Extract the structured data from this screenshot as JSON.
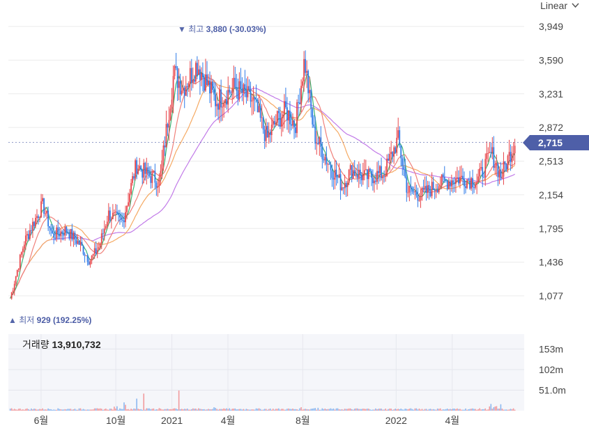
{
  "controls": {
    "scale_label": "Linear"
  },
  "current_price": {
    "label": "2,715",
    "value": 2715
  },
  "extremes": {
    "high": {
      "prefix": "최고",
      "value_label": "3,880",
      "change": "(-30.03%)"
    },
    "low": {
      "prefix": "최저",
      "value_label": "929",
      "change": "(192.25%)"
    }
  },
  "volume": {
    "label": "거래량",
    "value": "13,910,732"
  },
  "colors": {
    "up": "#e8474c",
    "down": "#2f7be8",
    "ma_short": "#3cb371",
    "ma_mid": "#f0807a",
    "ma_long": "#f5a962",
    "ma_longest": "#c17ae8",
    "tag": "#4e5fa8"
  },
  "chart_data": {
    "type": "candlestick",
    "price_axis": {
      "ticks": [
        3949,
        3590,
        3231,
        2872,
        2513,
        2154,
        1795,
        1436,
        1077
      ],
      "tick_labels": [
        "3,949",
        "3,590",
        "3,231",
        "2,872",
        "2,513",
        "2,154",
        "1,795",
        "1,436",
        "1,077"
      ],
      "range": [
        880,
        3990
      ]
    },
    "volume_axis": {
      "ticks": [
        153,
        102,
        51
      ],
      "tick_labels": [
        "153m",
        "102m",
        "51.0m"
      ],
      "range": [
        0,
        190
      ]
    },
    "x_axis": {
      "tick_labels": [
        "6월",
        "10월",
        "2021",
        "4월",
        "8월",
        "2022",
        "4월"
      ]
    },
    "close_trace": [
      [
        "2020-04",
        1050
      ],
      [
        "2020-05",
        1650
      ],
      [
        "2020-05",
        1860
      ],
      [
        "2020-06",
        2050
      ],
      [
        "2020-06",
        1720
      ],
      [
        "2020-07",
        1780
      ],
      [
        "2020-08",
        1620
      ],
      [
        "2020-08",
        1450
      ],
      [
        "2020-09",
        1600
      ],
      [
        "2020-09",
        1950
      ],
      [
        "2020-10",
        1860
      ],
      [
        "2020-11",
        2480
      ],
      [
        "2020-11",
        2380
      ],
      [
        "2020-12",
        2300
      ],
      [
        "2021-01",
        3450
      ],
      [
        "2021-01",
        3300
      ],
      [
        "2021-02",
        3550
      ],
      [
        "2021-03",
        3150
      ],
      [
        "2021-04",
        3300
      ],
      [
        "2021-05",
        3150
      ],
      [
        "2021-06",
        2750
      ],
      [
        "2021-06",
        2950
      ],
      [
        "2021-07",
        3050
      ],
      [
        "2021-07",
        2900
      ],
      [
        "2021-08",
        3600
      ],
      [
        "2021-08",
        2800
      ],
      [
        "2021-09",
        2500
      ],
      [
        "2021-10",
        2250
      ],
      [
        "2021-10",
        2420
      ],
      [
        "2021-11",
        2340
      ],
      [
        "2021-12",
        2380
      ],
      [
        "2022-01",
        2750
      ],
      [
        "2022-01",
        2200
      ],
      [
        "2022-02",
        2150
      ],
      [
        "2022-03",
        2280
      ],
      [
        "2022-04",
        2330
      ],
      [
        "2022-05",
        2300
      ],
      [
        "2022-06",
        2600
      ],
      [
        "2022-06",
        2350
      ],
      [
        "2022-07",
        2715
      ]
    ],
    "volume_spikes": [
      [
        "2020-10",
        25
      ],
      [
        "2020-11",
        48
      ],
      [
        "2020-12",
        10
      ],
      [
        "2021-01",
        72
      ],
      [
        "2021-03",
        12
      ],
      [
        "2021-08",
        12
      ],
      [
        "2022-06",
        18
      ]
    ]
  }
}
